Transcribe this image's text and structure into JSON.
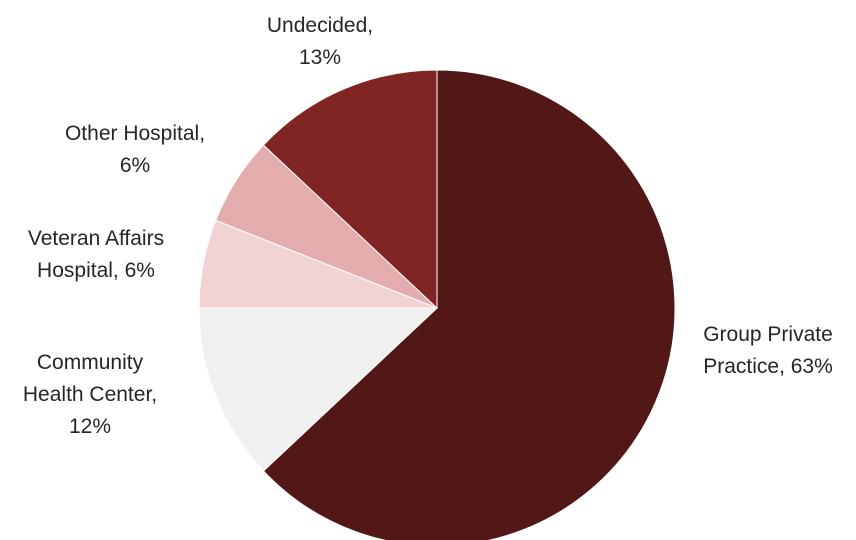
{
  "chart_data": {
    "type": "pie",
    "title": "",
    "start_angle_deg": 0,
    "direction": "clockwise",
    "slices": [
      {
        "name": "Group Private Practice",
        "value": 63,
        "label_lines": [
          "Group Private",
          "Practice, 63%"
        ],
        "color": "#521717"
      },
      {
        "name": "Community Health Center",
        "value": 12,
        "label_lines": [
          "Community",
          "Health Center,",
          "12%"
        ],
        "color": "#F0F0F0"
      },
      {
        "name": "Veteran Affairs Hospital",
        "value": 6,
        "label_lines": [
          "Veteran Affairs",
          "Hospital, 6%"
        ],
        "color": "#F1D3D3"
      },
      {
        "name": "Other Hospital",
        "value": 6,
        "label_lines": [
          "Other Hospital,",
          "6%"
        ],
        "color": "#E3ADAD"
      },
      {
        "name": "Undecided",
        "value": 13,
        "label_lines": [
          "Undecided,",
          "13%"
        ],
        "color": "#812424"
      }
    ]
  }
}
